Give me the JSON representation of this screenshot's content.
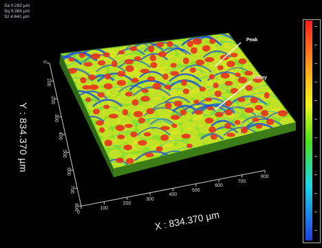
{
  "stats": {
    "sa": "Sa 0.282 µm",
    "sq": "Sq 0.365 µm",
    "sz": "Sz 4.641 µm"
  },
  "annotations": {
    "peak": "Peak",
    "valley": "Valley"
  },
  "axes": {
    "x_label": "X : 834.370 µm",
    "y_label": "Y : 834.370 µm",
    "x_ticks": [
      "0",
      "100",
      "200",
      "300",
      "400",
      "500",
      "600",
      "700",
      "800"
    ],
    "y_ticks": [
      "0",
      "100",
      "200",
      "300",
      "400",
      "500",
      "600",
      "700",
      "800"
    ]
  },
  "colors": {
    "surface_base": "#7fdc28",
    "surface_low": "#1a4fd8",
    "surface_high": "#e8331c",
    "background": "#000000"
  }
}
